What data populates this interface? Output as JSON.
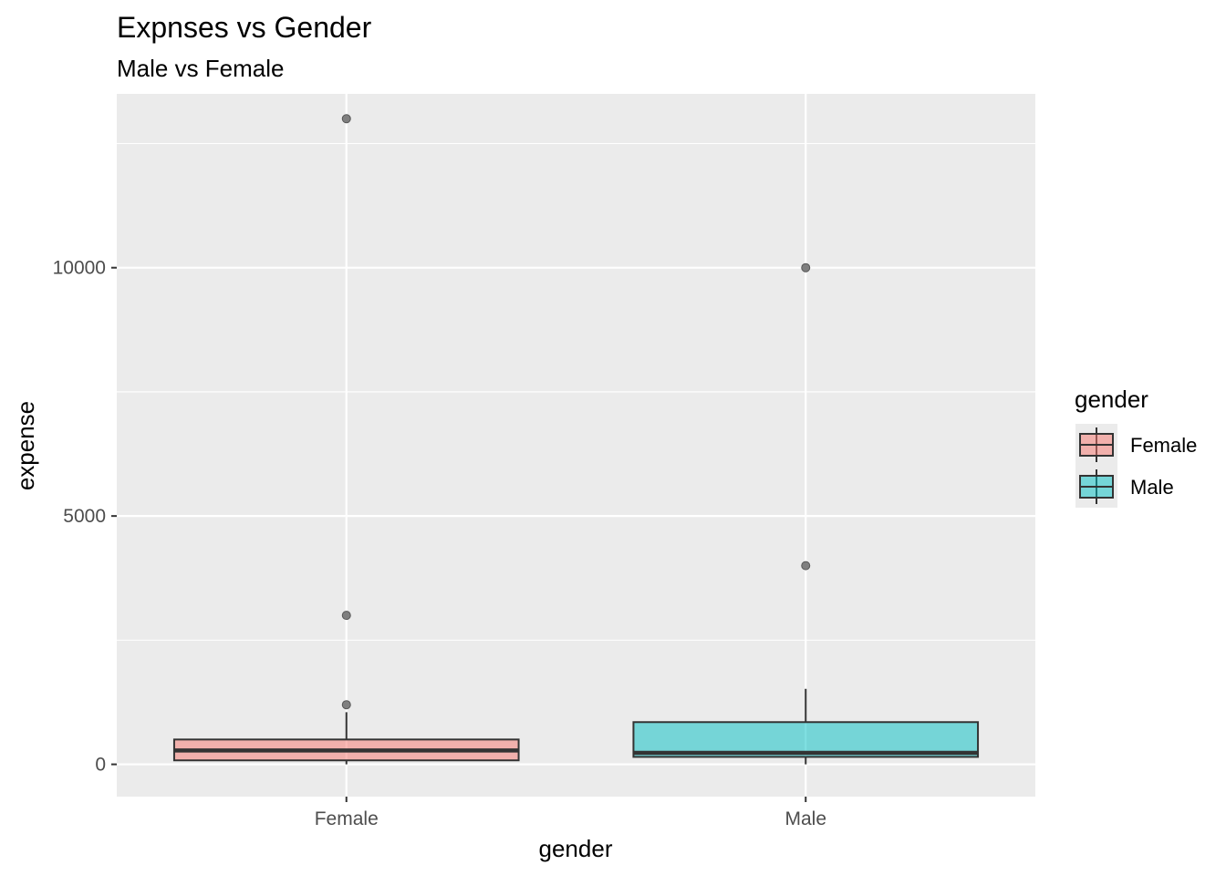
{
  "chart_data": {
    "type": "boxplot",
    "title": "Expnses vs Gender",
    "subtitle": "Male vs Female",
    "xlabel": "gender",
    "ylabel": "expense",
    "categories": [
      "Female",
      "Male"
    ],
    "ylim": [
      -650,
      13500
    ],
    "yticks": [
      0,
      5000,
      10000
    ],
    "ytick_labels": [
      "0",
      "5000",
      "10000"
    ],
    "grid": true,
    "legend": {
      "title": "gender",
      "position": "right",
      "entries": [
        "Female",
        "Male"
      ]
    },
    "colors": {
      "Female": "#f8766d",
      "Male": "#00bfc4",
      "outline": "#333333",
      "panel": "#ebebeb",
      "grid": "#ffffff",
      "outlier": "#7f7f7f"
    },
    "boxes": [
      {
        "category": "Female",
        "whisker_low": 0,
        "q1": 80,
        "median": 280,
        "q3": 500,
        "whisker_high": 1050,
        "outliers": [
          1200,
          3000,
          13000
        ]
      },
      {
        "category": "Male",
        "whisker_low": 0,
        "q1": 150,
        "median": 230,
        "q3": 850,
        "whisker_high": 1520,
        "outliers": [
          4000,
          10000
        ]
      }
    ]
  }
}
